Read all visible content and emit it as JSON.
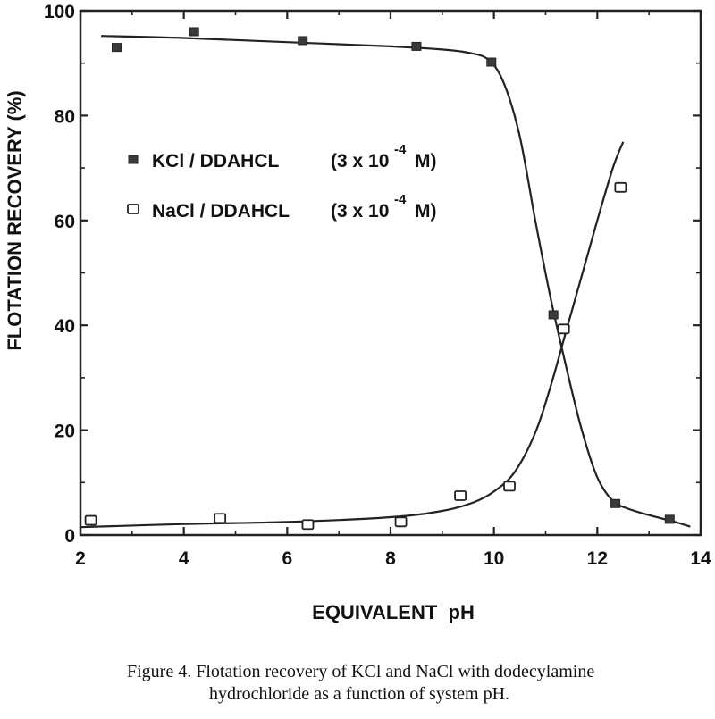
{
  "chart_data": {
    "type": "scatter",
    "xlabel": "EQUIVALENT  pH",
    "ylabel": "FLOTATION RECOVERY (%)",
    "xlim": [
      2,
      14
    ],
    "ylim": [
      0,
      100
    ],
    "xticks": [
      "2",
      "4",
      "6",
      "8",
      "10",
      "12",
      "14"
    ],
    "yticks": [
      "0",
      "20",
      "40",
      "60",
      "80",
      "100"
    ],
    "legend_position": "upper-left inside plot",
    "series": [
      {
        "name_base": "KCl / DDAHCL",
        "name_conc": "(3 x 10",
        "name_exp": "-4",
        "name_unit": "M)",
        "marker": "filled-square",
        "color": "#333333",
        "points": [
          {
            "x": 2.7,
            "y": 93
          },
          {
            "x": 4.2,
            "y": 96
          },
          {
            "x": 6.3,
            "y": 94.3
          },
          {
            "x": 8.5,
            "y": 93.2
          },
          {
            "x": 9.95,
            "y": 90.2
          },
          {
            "x": 11.15,
            "y": 42
          },
          {
            "x": 12.35,
            "y": 6
          },
          {
            "x": 13.4,
            "y": 3
          }
        ],
        "fit_curve": [
          [
            2.4,
            95.2
          ],
          [
            4.0,
            94.8
          ],
          [
            6.0,
            94.0
          ],
          [
            8.0,
            93.2
          ],
          [
            9.0,
            92.6
          ],
          [
            9.5,
            92.0
          ],
          [
            9.9,
            90.6
          ],
          [
            10.2,
            86.0
          ],
          [
            10.5,
            76.0
          ],
          [
            10.8,
            60.0
          ],
          [
            11.1,
            45.0
          ],
          [
            11.4,
            32.0
          ],
          [
            11.7,
            20.0
          ],
          [
            12.0,
            11.0
          ],
          [
            12.3,
            6.5
          ],
          [
            12.6,
            5.0
          ],
          [
            13.0,
            3.8
          ],
          [
            13.5,
            2.5
          ],
          [
            13.8,
            1.6
          ]
        ]
      },
      {
        "name_base": "NaCl / DDAHCL",
        "name_conc": "(3 x 10",
        "name_exp": "-4",
        "name_unit": "M)",
        "marker": "open-square",
        "color": "#333333",
        "points": [
          {
            "x": 2.2,
            "y": 2.8
          },
          {
            "x": 4.7,
            "y": 3.2
          },
          {
            "x": 6.4,
            "y": 2.0
          },
          {
            "x": 8.2,
            "y": 2.5
          },
          {
            "x": 9.35,
            "y": 7.5
          },
          {
            "x": 10.3,
            "y": 9.3
          },
          {
            "x": 11.35,
            "y": 39.3
          },
          {
            "x": 12.45,
            "y": 66.3
          }
        ],
        "fit_curve": [
          [
            2.0,
            1.5
          ],
          [
            4.0,
            2.1
          ],
          [
            6.0,
            2.5
          ],
          [
            8.0,
            3.4
          ],
          [
            9.0,
            4.6
          ],
          [
            9.6,
            6.2
          ],
          [
            10.0,
            8.3
          ],
          [
            10.4,
            12.0
          ],
          [
            10.8,
            19.5
          ],
          [
            11.1,
            28.5
          ],
          [
            11.4,
            39.0
          ],
          [
            11.7,
            49.5
          ],
          [
            12.0,
            60.0
          ],
          [
            12.3,
            70.0
          ],
          [
            12.5,
            75.0
          ]
        ]
      }
    ]
  },
  "caption": {
    "line1": "Figure 4.  Flotation recovery of KCl and NaCl with dodecylamine",
    "line2": "hydrochloride as a function of system pH."
  }
}
